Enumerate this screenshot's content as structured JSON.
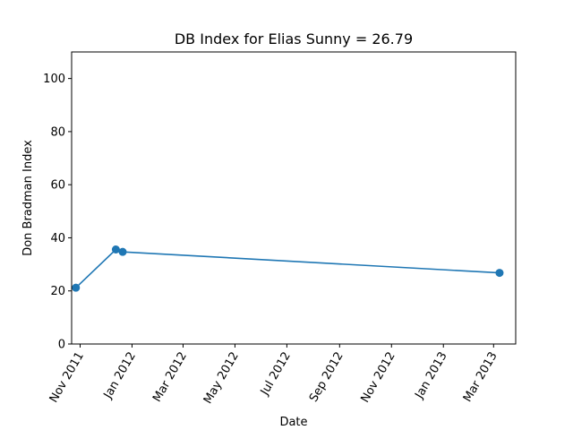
{
  "chart_data": {
    "type": "line",
    "title": "DB Index for Elias Sunny = 26.79",
    "xlabel": "Date",
    "ylabel": "Don Bradman Index",
    "x_tick_labels": [
      "Nov 2011",
      "Jan 2012",
      "Mar 2012",
      "May 2012",
      "Jul 2012",
      "Sep 2012",
      "Nov 2012",
      "Jan 2013",
      "Mar 2013"
    ],
    "x_tick_dates": [
      "2011-11-01",
      "2012-01-01",
      "2012-03-01",
      "2012-05-01",
      "2012-07-01",
      "2012-09-01",
      "2012-11-01",
      "2013-01-01",
      "2013-03-01"
    ],
    "y_ticks": [
      0,
      20,
      40,
      60,
      80,
      100
    ],
    "xlim": [
      "2011-10-22",
      "2013-03-27"
    ],
    "ylim": [
      0,
      110
    ],
    "grid": false,
    "series": [
      {
        "x": [
          "2011-10-27",
          "2011-12-13",
          "2011-12-21",
          "2013-03-08"
        ],
        "y": [
          21.2,
          35.6,
          34.7,
          26.79
        ],
        "color": "#1f77b4",
        "marker": "circle"
      }
    ]
  }
}
